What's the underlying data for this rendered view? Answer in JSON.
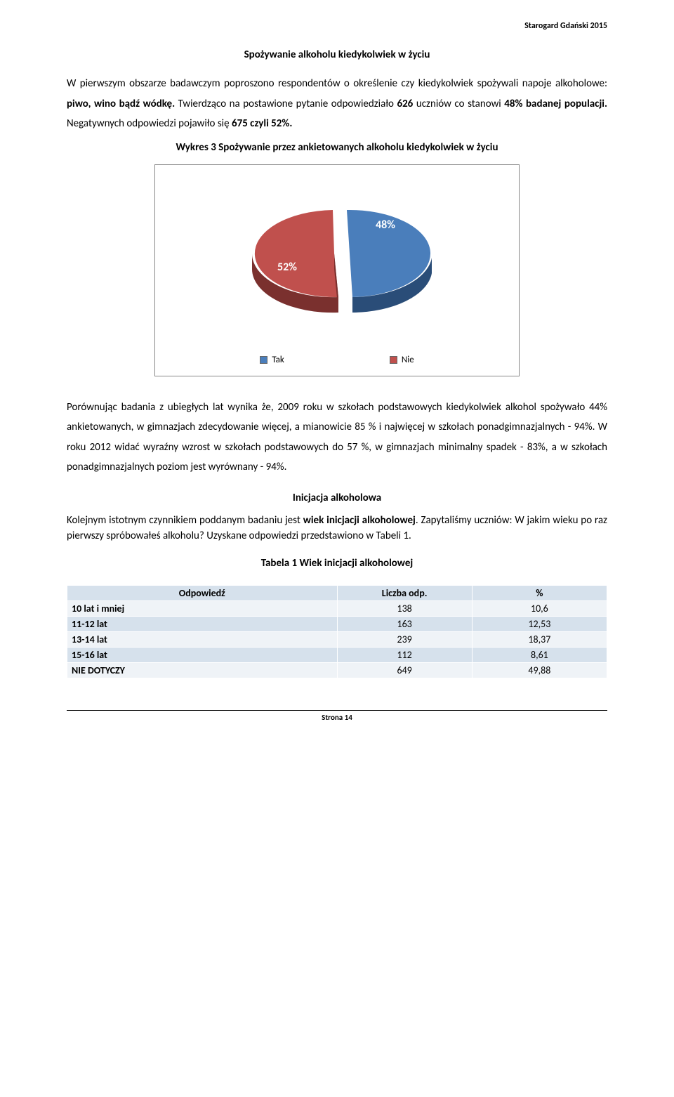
{
  "header": {
    "right": "Starogard Gdański 2015"
  },
  "section1": {
    "title": "Spożywanie alkoholu kiedykolwiek w życiu",
    "para": "W pierwszym obszarze badawczym poproszono respondentów o określenie czy kiedykolwiek spożywali napoje alkoholowe: <b>piwo, wino bądź wódkę.</b> Twierdząco na postawione pytanie odpowiedziało <b>626</b> uczniów co stanowi <b>48% badanej populacji.</b> Negatywnych odpowiedzi pojawiło się <b>675 czyli 52%.</b>"
  },
  "chart": {
    "caption": "Wykres 3 Spożywanie przez ankietowanych alkoholu kiedykolwiek w życiu",
    "type": "pie",
    "slices": [
      {
        "label": "48%",
        "value": 48,
        "color_top": "#4a7ebb",
        "color_side": "#2a4d78",
        "legend": "Tak"
      },
      {
        "label": "52%",
        "value": 52,
        "color_top": "#c0504d",
        "color_side": "#7a302e",
        "legend": "Nie"
      }
    ],
    "legend_swatch_tak": "#4a7ebb",
    "legend_swatch_nie": "#c0504d",
    "label_fontsize": 16,
    "label_color": "#ffffff",
    "legend_fontsize": 13
  },
  "section2": {
    "para": "Porównując badania z ubiegłych lat wynika że, 2009 roku w szkołach podstawowych kiedykolwiek alkohol spożywało 44% ankietowanych, w gimnazjach zdecydowanie więcej, a mianowicie 85 % i najwięcej w szkołach ponadgimnazjalnych - 94%. W roku 2012 widać wyraźny wzrost w szkołach podstawowych  do 57 %, w gimnazjach minimalny spadek - 83%, a w szkołach ponadgimnazjalnych  poziom jest wyrównany - 94%."
  },
  "section3": {
    "heading": "Inicjacja alkoholowa",
    "para": "Kolejnym istotnym czynnikiem poddanym badaniu jest <b>wiek inicjacji alkoholowej</b>. Zapytaliśmy uczniów: W jakim wieku po raz pierwszy spróbowałeś alkoholu? Uzyskane odpowiedzi przedstawiono w Tabeli 1.",
    "table_caption": "Tabela 1 Wiek inicjacji alkoholowej"
  },
  "table": {
    "columns": [
      "Odpowiedź",
      "Liczba odp.",
      "%"
    ],
    "col_widths": [
      "50%",
      "25%",
      "25%"
    ],
    "head_bg": "#d6e1ec",
    "row_bg_light": "#eff3f7",
    "row_bg_dark": "#d6e1ec",
    "rows": [
      {
        "label": "10 lat i mniej",
        "count": "138",
        "pct": "10,6"
      },
      {
        "label": "11-12 lat",
        "count": "163",
        "pct": "12,53"
      },
      {
        "label": "13-14 lat",
        "count": "239",
        "pct": "18,37"
      },
      {
        "label": "15-16 lat",
        "count": "112",
        "pct": "8,61"
      },
      {
        "label": "NIE DOTYCZY",
        "count": "649",
        "pct": "49,88"
      }
    ]
  },
  "footer": {
    "text": "Strona 14"
  }
}
